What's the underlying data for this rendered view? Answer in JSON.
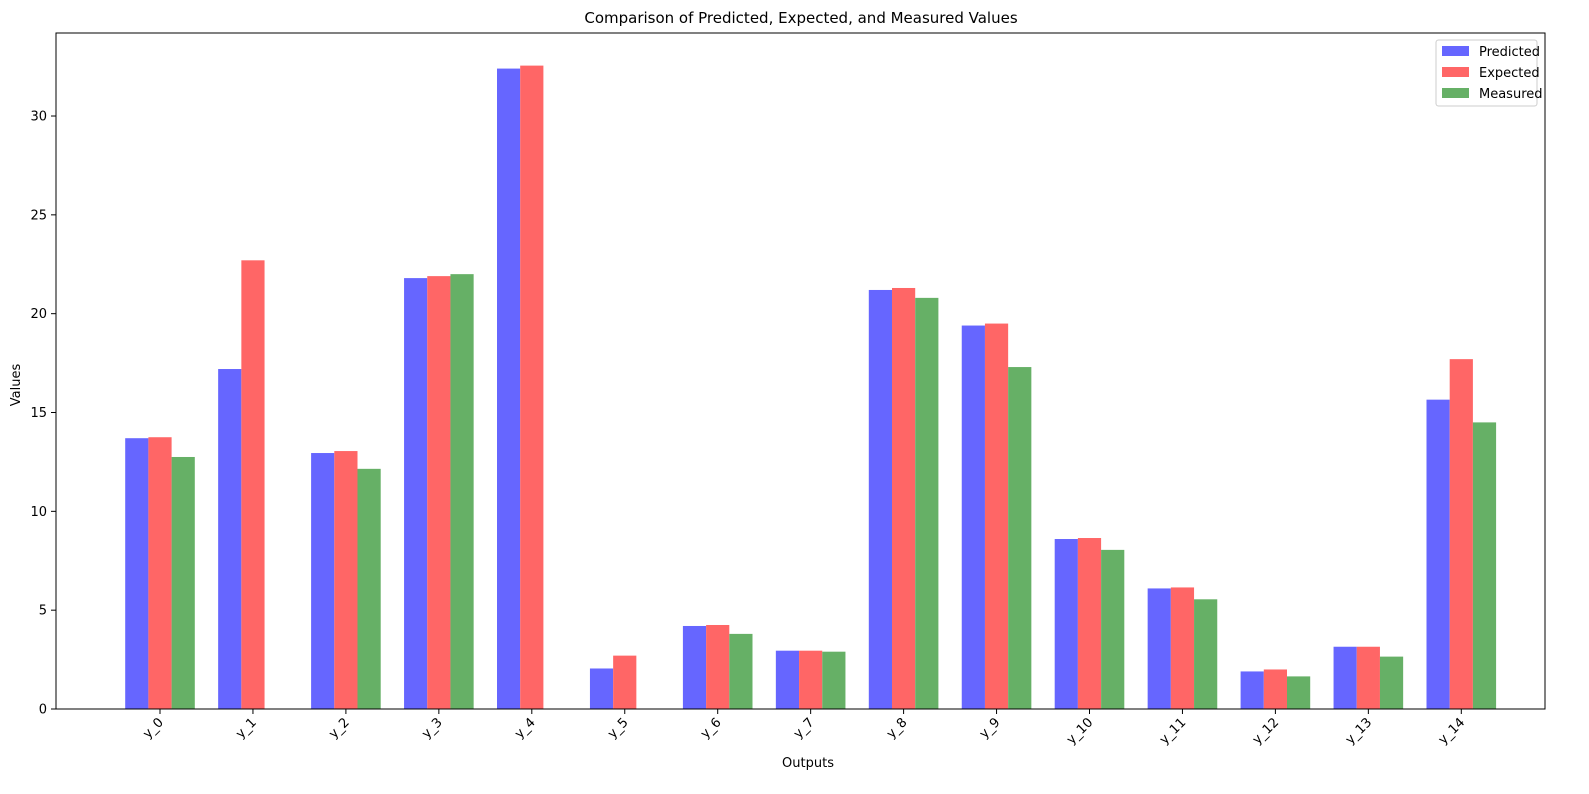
{
  "chart_data": {
    "type": "bar",
    "title": "Comparison of Predicted, Expected, and Measured Values",
    "xlabel": "Outputs",
    "ylabel": "Values",
    "categories": [
      "y_0",
      "y_1",
      "y_2",
      "y_3",
      "y_4",
      "y_5",
      "y_6",
      "y_7",
      "y_8",
      "y_9",
      "y_10",
      "y_11",
      "y_12",
      "y_13",
      "y_14"
    ],
    "ylim": [
      0,
      34.2
    ],
    "yticks": [
      0,
      5,
      10,
      15,
      20,
      25,
      30
    ],
    "grid": false,
    "legend_position": "top-right",
    "series": [
      {
        "name": "Predicted",
        "color": "#6666ff",
        "values": [
          13.7,
          17.2,
          12.95,
          21.8,
          32.4,
          2.05,
          4.2,
          2.95,
          21.2,
          19.4,
          8.6,
          6.1,
          1.9,
          3.15,
          15.65
        ]
      },
      {
        "name": "Expected",
        "color": "#ff6666",
        "values": [
          13.75,
          22.7,
          13.05,
          21.9,
          32.55,
          2.7,
          4.25,
          2.95,
          21.3,
          19.5,
          8.65,
          6.15,
          2.0,
          3.15,
          17.7
        ]
      },
      {
        "name": "Measured",
        "color": "#66b066",
        "values": [
          12.75,
          null,
          12.15,
          22.0,
          null,
          null,
          3.8,
          2.9,
          20.8,
          17.3,
          8.05,
          5.55,
          1.65,
          2.65,
          14.5
        ]
      }
    ]
  }
}
